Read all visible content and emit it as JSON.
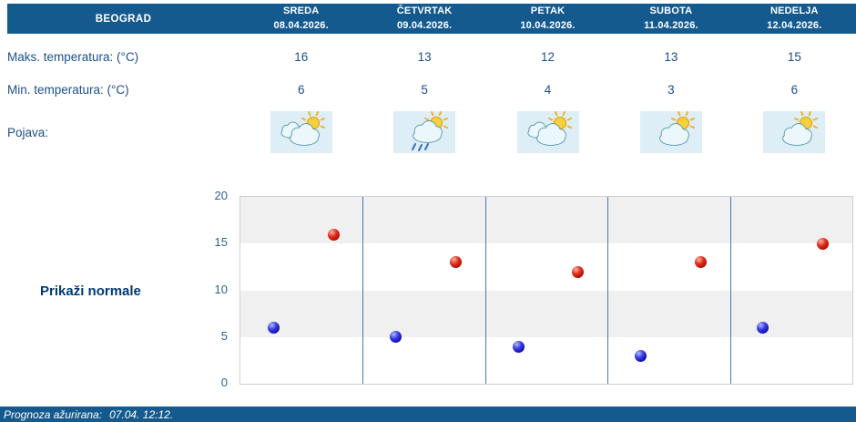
{
  "header": {
    "city": "BEOGRAD",
    "days": [
      {
        "name": "SREDA",
        "date": "08.04.2026."
      },
      {
        "name": "ČETVRTAK",
        "date": "09.04.2026."
      },
      {
        "name": "PETAK",
        "date": "10.04.2026."
      },
      {
        "name": "SUBOTA",
        "date": "11.04.2026."
      },
      {
        "name": "NEDELJA",
        "date": "12.04.2026."
      }
    ]
  },
  "rows": {
    "max_label": "Maks. temperatura: (°C)",
    "min_label": "Min. temperatura: (°C)",
    "pojava_label": "Pojava:"
  },
  "pojava_icons": [
    {
      "name": "sun-behind-clouds-icon",
      "clouds": 2,
      "rain": false
    },
    {
      "name": "sun-cloud-rain-icon",
      "clouds": 1,
      "rain": true
    },
    {
      "name": "sun-behind-clouds-icon",
      "clouds": 2,
      "rain": false
    },
    {
      "name": "sun-behind-cloud-icon",
      "clouds": 1,
      "rain": false
    },
    {
      "name": "sun-behind-cloud-icon",
      "clouds": 1,
      "rain": false
    }
  ],
  "normals_button": "Prikaži normale",
  "footer": {
    "label": "Prognoza ažurirana:",
    "timestamp": "07.04. 12:12."
  },
  "chart_data": {
    "type": "scatter",
    "categories": [
      "SREDA 08.04.2026.",
      "ČETVRTAK 09.04.2026.",
      "PETAK 10.04.2026.",
      "SUBOTA 11.04.2026.",
      "NEDELJA 12.04.2026."
    ],
    "series": [
      {
        "name": "Maks. temperatura (°C)",
        "color": "#CC1100",
        "values": [
          16,
          13,
          12,
          13,
          15
        ]
      },
      {
        "name": "Min. temperatura (°C)",
        "color": "#1414CC",
        "values": [
          6,
          5,
          4,
          3,
          6
        ]
      }
    ],
    "ylim": [
      0,
      20
    ],
    "yticks": [
      0,
      5,
      10,
      15,
      20
    ],
    "grid": "alternating gray/white horizontal bands each 5°C; vertical separator lines between days",
    "legend": "none"
  },
  "colors": {
    "header_bg": "#155A8E",
    "text_blue": "#1B4F8A",
    "band_gray": "#F0F0F0",
    "icon_tile_bg": "#DDEEF6",
    "day_separator": "#4A7AA8",
    "dot_max": "#CC1100",
    "dot_min": "#1414CC"
  }
}
